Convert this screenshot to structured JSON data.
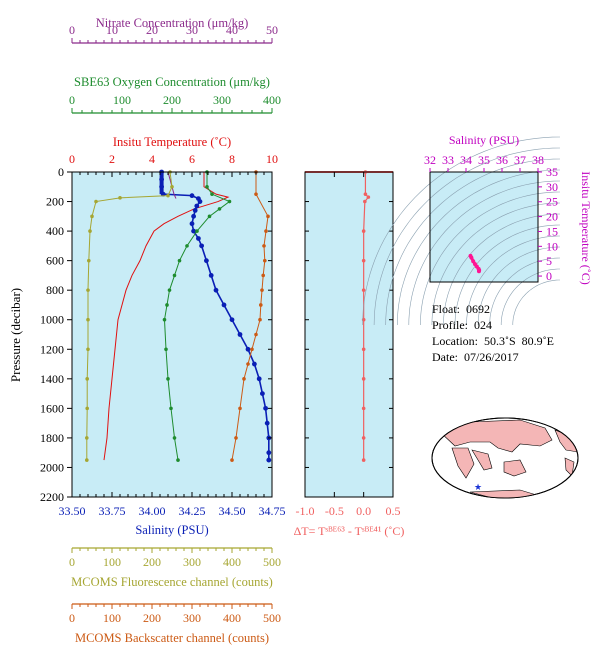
{
  "colors": {
    "nitrate": "#8b2a8b",
    "oxygen": "#1e8c2e",
    "temperature": "#e01010",
    "salinity": "#0a1fb5",
    "fluorescence": "#a6a632",
    "backscatter": "#cc5a14",
    "dt": "#f06060",
    "ts_salinity_axis": "#c000c0",
    "panel_bg": "#c8ecf6",
    "land": "#f4b6b6",
    "ocean": "#ffffff"
  },
  "info": {
    "float": "Float:  0692",
    "profile": "Profile:  024",
    "location": "Location:  50.3˚S  80.9˚E",
    "date": "Date:  07/26/2017"
  },
  "chart_data": [
    {
      "type": "line",
      "title": "",
      "ylabel": "Pressure (decibar)",
      "ylim": [
        0,
        2200
      ],
      "y_ticks": [
        0,
        200,
        400,
        600,
        800,
        1000,
        1200,
        1400,
        1600,
        1800,
        2000,
        2200
      ],
      "axes": {
        "nitrate": {
          "label": "Nitrate Concentration (μm/kg)",
          "ticks": [
            0,
            10,
            20,
            30,
            40,
            50
          ],
          "range": [
            0,
            50
          ]
        },
        "oxygen": {
          "label": "SBE63 Oxygen Concentration (μm/kg)",
          "ticks": [
            0,
            100,
            200,
            300,
            400
          ],
          "range": [
            0,
            400
          ]
        },
        "temperature": {
          "label": "Insitu Temperature (˚C)",
          "ticks": [
            0,
            2,
            4,
            6,
            8,
            10
          ],
          "range": [
            0,
            10
          ]
        },
        "salinity": {
          "label": "Salinity (PSU)",
          "ticks": [
            "33.50",
            "33.75",
            "34.00",
            "34.25",
            "34.50",
            "34.75"
          ],
          "range": [
            33.5,
            34.75
          ]
        },
        "fluorescence": {
          "label": "MCOMS Fluorescence channel (counts)",
          "ticks": [
            0,
            100,
            200,
            300,
            400,
            500
          ],
          "range": [
            0,
            500
          ]
        },
        "backscatter": {
          "label": "MCOMS Backscatter channel (counts)",
          "ticks": [
            0,
            100,
            200,
            300,
            400,
            500
          ],
          "range": [
            0,
            500
          ]
        }
      },
      "series": [
        {
          "key": "temperature",
          "pressure": [
            0,
            100,
            150,
            170,
            200,
            250,
            300,
            350,
            400,
            500,
            600,
            700,
            800,
            900,
            1000,
            1200,
            1400,
            1600,
            1800,
            1950
          ],
          "values": [
            6.6,
            6.6,
            7.2,
            7.8,
            7.3,
            6.1,
            5.3,
            4.6,
            4.1,
            3.7,
            3.4,
            3.0,
            2.7,
            2.5,
            2.3,
            2.15,
            2.0,
            1.85,
            1.75,
            1.6
          ]
        },
        {
          "key": "salinity",
          "pressure": [
            0,
            50,
            100,
            150,
            160,
            180,
            200,
            230,
            260,
            300,
            350,
            400,
            450,
            500,
            600,
            700,
            800,
            900,
            1000,
            1100,
            1200,
            1300,
            1400,
            1500,
            1600,
            1700,
            1800,
            1900,
            1950
          ],
          "values": [
            34.06,
            34.06,
            34.06,
            34.07,
            34.25,
            34.29,
            34.3,
            34.28,
            34.27,
            34.26,
            34.25,
            34.26,
            34.29,
            34.31,
            34.34,
            34.37,
            34.4,
            34.45,
            34.5,
            34.55,
            34.6,
            34.64,
            34.67,
            34.69,
            34.71,
            34.72,
            34.73,
            34.73,
            34.73
          ]
        },
        {
          "key": "oxygen",
          "pressure": [
            0,
            100,
            150,
            200,
            250,
            300,
            400,
            500,
            600,
            700,
            800,
            900,
            1000,
            1200,
            1400,
            1600,
            1800,
            1950
          ],
          "values": [
            270,
            270,
            280,
            315,
            295,
            275,
            250,
            230,
            215,
            205,
            195,
            190,
            185,
            188,
            192,
            198,
            205,
            212
          ]
        },
        {
          "key": "nitrate",
          "pressure": [
            0,
            50,
            100,
            150,
            180
          ],
          "values": [
            24,
            24.5,
            25,
            25.5,
            26
          ]
        },
        {
          "key": "fluorescence",
          "pressure": [
            0,
            100,
            160,
            175,
            200,
            300,
            400,
            600,
            800,
            1000,
            1200,
            1400,
            1600,
            1800,
            1950
          ],
          "values": [
            245,
            250,
            240,
            120,
            60,
            50,
            45,
            42,
            40,
            40,
            40,
            38,
            38,
            37,
            37
          ]
        },
        {
          "key": "backscatter",
          "pressure": [
            0,
            150,
            300,
            400,
            500,
            600,
            700,
            800,
            900,
            1000,
            1100,
            1200,
            1300,
            1400,
            1600,
            1800,
            1950
          ],
          "values": [
            460,
            460,
            490,
            485,
            480,
            482,
            478,
            475,
            472,
            470,
            460,
            450,
            440,
            430,
            420,
            410,
            400
          ]
        }
      ]
    },
    {
      "type": "line",
      "title": "",
      "xlabel": "ΔT= Tˢᴮᴱ⁶³ - Tˢᴮᴱ⁴¹ (˚C)",
      "xlim": [
        -1.0,
        0.5
      ],
      "x_ticks": [
        "-1.0",
        "-0.5",
        "0.0",
        "0.5"
      ],
      "series": [
        {
          "name": "",
          "pressure": [
            0,
            150,
            170,
            200,
            400,
            600,
            800,
            1000,
            1200,
            1400,
            1600,
            1800,
            1950
          ],
          "values": [
            0.03,
            0.03,
            0.08,
            0.02,
            0.0,
            0.0,
            0.0,
            0.0,
            0.0,
            0.0,
            0.0,
            0.0,
            0.0
          ]
        }
      ]
    },
    {
      "type": "scatter",
      "title": "",
      "xlabel": "Salinity (PSU)",
      "ylabel": "Insitu Temperature (˚C)",
      "xlim": [
        32,
        38
      ],
      "ylim": [
        -2,
        35
      ],
      "x_ticks": [
        32,
        33,
        34,
        35,
        36,
        37,
        38
      ],
      "y_ticks": [
        0,
        5,
        10,
        15,
        20,
        25,
        30,
        35
      ],
      "series": [
        {
          "name": "",
          "x": [
            34.25,
            34.3,
            34.4,
            34.5,
            34.6,
            34.7,
            34.73,
            34.72
          ],
          "y": [
            6.8,
            6.2,
            5.0,
            4.0,
            3.2,
            2.4,
            2.0,
            1.6
          ]
        }
      ]
    }
  ]
}
